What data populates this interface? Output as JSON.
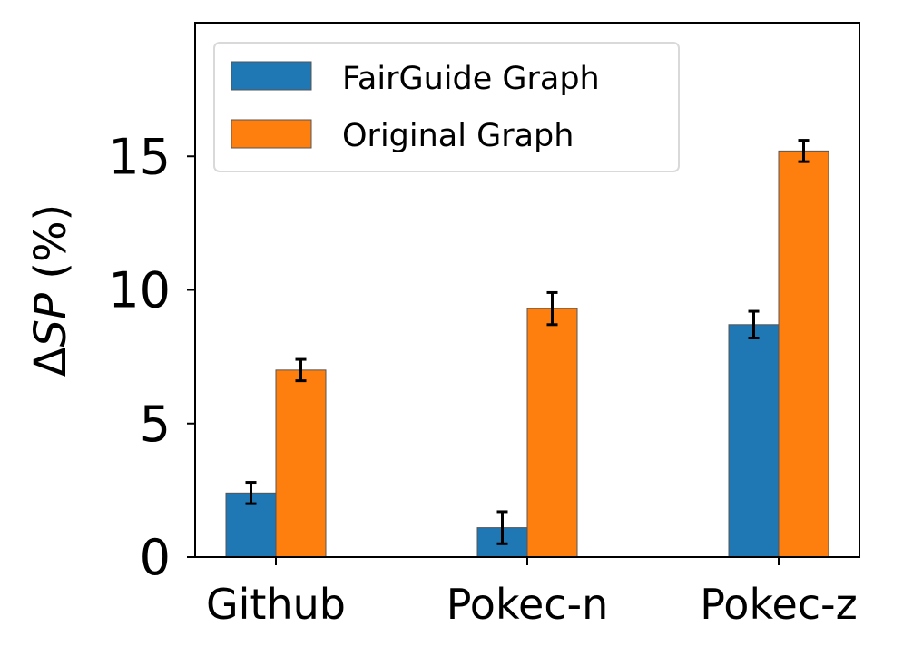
{
  "chart_data": {
    "type": "bar",
    "title": "",
    "xlabel": "",
    "ylabel": "ΔSP (%)",
    "ylabel_parts": {
      "delta": "Δ",
      "italic": "SP",
      "unit": " (%)"
    },
    "categories": [
      "Github",
      "Pokec-n",
      "Pokec-z"
    ],
    "series": [
      {
        "name": "FairGuide Graph",
        "color": "#1f77b4",
        "values": [
          2.4,
          1.1,
          8.7
        ],
        "errors": [
          0.4,
          0.6,
          0.5
        ]
      },
      {
        "name": "Original Graph",
        "color": "#ff7f0e",
        "values": [
          7.0,
          9.3,
          15.2
        ],
        "errors": [
          0.4,
          0.6,
          0.4
        ]
      }
    ],
    "ylim": [
      0,
      20
    ],
    "yticks": [
      0,
      5,
      10,
      15
    ],
    "ytick_labels": [
      "0",
      "5",
      "10",
      "15"
    ],
    "grid": false,
    "legend": "top-left",
    "error_bars": true
  }
}
